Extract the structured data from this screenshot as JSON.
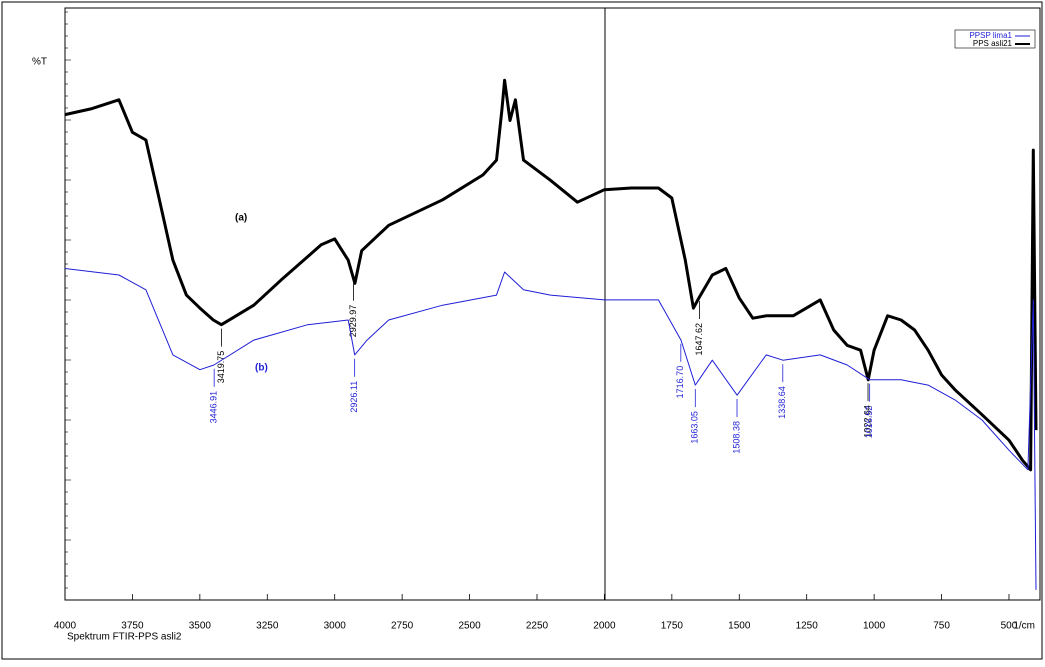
{
  "chart_data": {
    "type": "line",
    "y_axis_label": "%T",
    "x_axis_label": "Spektrum FTIR-PPS asli2",
    "x_unit_label": "1/cm",
    "xlim": [
      4000,
      385
    ],
    "ylim": [
      0,
      100
    ],
    "xticks": [
      4000,
      3750,
      3500,
      3250,
      3000,
      2750,
      2500,
      2250,
      2000,
      1750,
      1500,
      1250,
      1000,
      750,
      500
    ],
    "annotations": [
      "(a)",
      "(b)"
    ],
    "series": [
      {
        "name": "PPS asli21",
        "color": "#000000",
        "x": [
          4000,
          3900,
          3800,
          3750,
          3700,
          3650,
          3600,
          3550,
          3500,
          3450,
          3420,
          3300,
          3200,
          3050,
          3000,
          2950,
          2925,
          2900,
          2800,
          2600,
          2450,
          2400,
          2380,
          2370,
          2350,
          2330,
          2300,
          2200,
          2100,
          2000,
          1900,
          1800,
          1750,
          1700,
          1670,
          1650,
          1600,
          1550,
          1500,
          1450,
          1400,
          1300,
          1200,
          1150,
          1100,
          1050,
          1022,
          1000,
          950,
          900,
          850,
          800,
          750,
          700,
          600,
          500,
          450,
          420,
          410,
          400
        ],
        "values": [
          82,
          83,
          84.5,
          79,
          77.7,
          67.6,
          57.4,
          51.5,
          49.3,
          47.3,
          46.5,
          49.8,
          54,
          60,
          61,
          57.4,
          53.5,
          59,
          63.3,
          67.6,
          71.8,
          74.3,
          82.8,
          87.8,
          81,
          84.5,
          74.3,
          70.9,
          67.2,
          69.3,
          69.6,
          69.6,
          67.9,
          57.4,
          49.3,
          51,
          54.9,
          56,
          51,
          47.6,
          48,
          48,
          50.7,
          45.6,
          43,
          42.2,
          37.2,
          42.2,
          48,
          47.3,
          45.6,
          42.2,
          38,
          35.5,
          31.3,
          27,
          23.6,
          22,
          76,
          28.7
        ],
        "peaks": [
          3419.75,
          2929.97,
          1647.62,
          1022.64
        ]
      },
      {
        "name": "PPSP lima1",
        "color": "#1f1fd6",
        "x": [
          4000,
          3800,
          3700,
          3600,
          3500,
          3448,
          3300,
          3100,
          2950,
          2926,
          2880,
          2800,
          2600,
          2400,
          2370,
          2300,
          2200,
          2000,
          1800,
          1716,
          1663,
          1600,
          1508,
          1400,
          1338,
          1200,
          1100,
          1016,
          900,
          800,
          700,
          600,
          500,
          430,
          410,
          400
        ],
        "values": [
          56,
          54.9,
          52.4,
          41.4,
          38.9,
          39.7,
          43.9,
          46.5,
          47.3,
          41.4,
          43.9,
          47.3,
          49.8,
          51.5,
          55.4,
          52.4,
          51.5,
          50.7,
          50.7,
          43.9,
          36.3,
          40.5,
          34.6,
          41.4,
          40.5,
          41.4,
          39.7,
          37.2,
          37.2,
          36.3,
          33.8,
          30.4,
          25.3,
          22,
          50.7,
          1.7
        ],
        "peaks": [
          3446.91,
          2926.11,
          {
            "value": 1716.7,
            "label": "1716.70"
          },
          1663.05,
          1508.38,
          1338.64,
          1016.52
        ]
      }
    ]
  }
}
